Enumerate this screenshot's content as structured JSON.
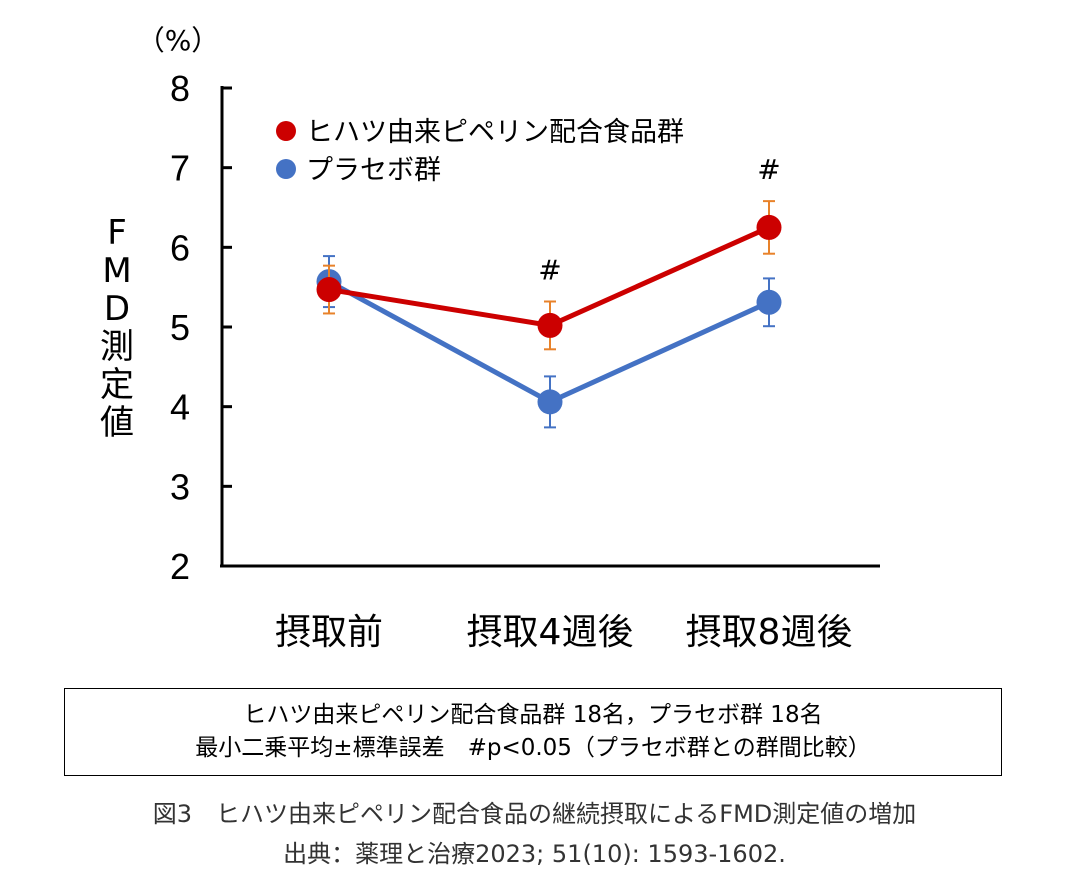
{
  "chart_data": {
    "type": "line",
    "title": "",
    "unit_label": "（%）",
    "ylabel": "FMD測定値",
    "xlabel": "",
    "categories": [
      "摂取前",
      "摂取4週後",
      "摂取8週後"
    ],
    "ylim": [
      2,
      8
    ],
    "yticks": [
      2,
      3,
      4,
      5,
      6,
      7,
      8
    ],
    "grid": false,
    "legend_position": "top-left",
    "series": [
      {
        "name": "ヒハツ由来ピペリン配合食品群",
        "color": "#cc0000",
        "error_color": "#e8822a",
        "values": [
          5.47,
          5.02,
          6.25
        ],
        "errors": [
          0.3,
          0.3,
          0.33
        ]
      },
      {
        "name": "プラセボ群",
        "color": "#4472c4",
        "error_color": "#4472c4",
        "values": [
          5.57,
          4.06,
          5.31
        ],
        "errors": [
          0.32,
          0.32,
          0.3
        ]
      }
    ],
    "annotations": [
      {
        "category_index": 1,
        "text": "#"
      },
      {
        "category_index": 2,
        "text": "#"
      }
    ]
  },
  "note": {
    "line1": "ヒハツ由来ピペリン配合食品群 18名，プラセボ群 18名",
    "line2": "最小二乗平均±標準誤差　#p<0.05（プラセボ群との群間比較）"
  },
  "caption": {
    "line1": "図3　ヒハツ由来ピペリン配合食品の継続摂取によるFMD測定値の増加",
    "line2": "出典：薬理と治療2023; 51(10): 1593-1602."
  }
}
